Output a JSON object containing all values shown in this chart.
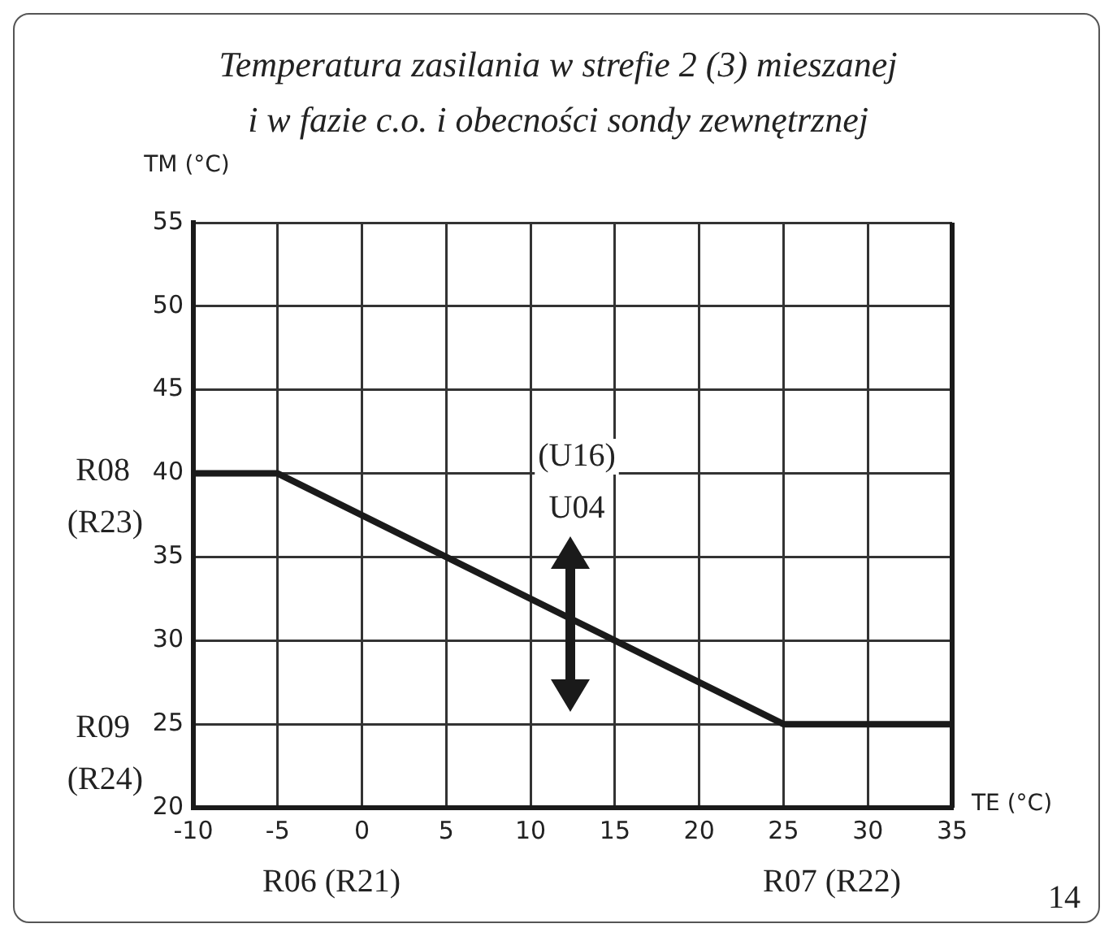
{
  "chart_data": {
    "type": "line",
    "title": "Temperatura zasilania w strefie 2 (3) mieszanej\ni w fazie c.o. i obecności sondy zewnętrznej",
    "xlabel": "TE (°C)",
    "ylabel": "TM (°C)",
    "x": [
      -10,
      -5,
      25,
      35
    ],
    "series": [
      {
        "color": "#1a1a1a",
        "values": [
          40,
          40,
          25,
          25
        ]
      }
    ],
    "xlim": [
      -10,
      35
    ],
    "xticks": [
      -10,
      -5,
      0,
      5,
      10,
      15,
      20,
      25,
      30,
      35
    ],
    "ylim": [
      20,
      55
    ],
    "yticks": [
      20,
      25,
      30,
      35,
      40,
      45,
      50,
      55
    ],
    "grid": true,
    "legend": false,
    "annotations": [
      "R08 (R23)",
      "R09 (R24)",
      "R06 (R21)",
      "R07 (R22)",
      "(U16) U04",
      "14"
    ]
  }
}
